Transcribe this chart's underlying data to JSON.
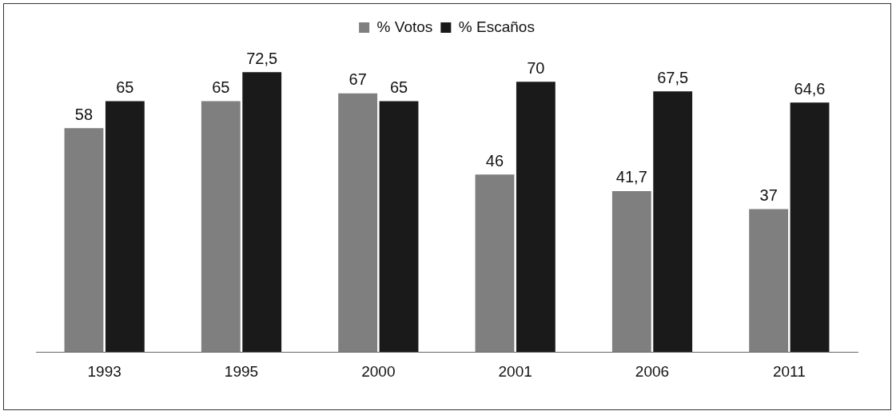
{
  "chart_data": {
    "type": "bar",
    "categories": [
      "1993",
      "1995",
      "2000",
      "2001",
      "2006",
      "2011"
    ],
    "series": [
      {
        "name": "% Votos",
        "color": "#7f7f7f",
        "values": [
          58,
          65,
          67,
          46,
          41.7,
          37
        ],
        "value_labels": [
          "58",
          "65",
          "67",
          "46",
          "41,7",
          "37"
        ]
      },
      {
        "name": "% Escaños",
        "color": "#1a1a1a",
        "values": [
          65,
          72.5,
          65,
          70,
          67.5,
          64.6
        ],
        "value_labels": [
          "65",
          "72,5",
          "65",
          "70",
          "67,5",
          "64,6"
        ]
      }
    ],
    "legend": "top",
    "grid": false,
    "tick_labels": "x"
  }
}
